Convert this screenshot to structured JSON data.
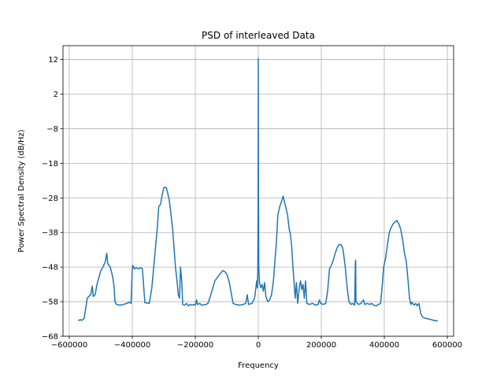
{
  "chart_data": {
    "type": "line",
    "title": "PSD of interleaved Data",
    "xlabel": "Frequency",
    "ylabel": "Power Spectral Density (dB/Hz)",
    "xlim": [
      -620000,
      620000
    ],
    "ylim": [
      -68,
      16
    ],
    "x_ticks": [
      -600000,
      -400000,
      -200000,
      0,
      200000,
      400000,
      600000
    ],
    "x_tick_labels": [
      "−600000",
      "−400000",
      "−200000",
      "0",
      "200000",
      "400000",
      "600000"
    ],
    "y_ticks": [
      12,
      2,
      -8,
      -18,
      -28,
      -38,
      -48,
      -58,
      -68
    ],
    "y_tick_labels": [
      "12",
      "2",
      "−8",
      "−18",
      "−28",
      "−38",
      "−48",
      "−58",
      "−68"
    ],
    "grid": true,
    "series": [
      {
        "color": "#1f77b4",
        "points": [
          [
            -572000,
            -63.5
          ],
          [
            -565000,
            -63.2
          ],
          [
            -560000,
            -63.4
          ],
          [
            -553000,
            -62.8
          ],
          [
            -548000,
            -60.0
          ],
          [
            -543000,
            -57.0
          ],
          [
            -538000,
            -56.5
          ],
          [
            -532000,
            -56.0
          ],
          [
            -527000,
            -53.5
          ],
          [
            -524000,
            -56.5
          ],
          [
            -518000,
            -56.0
          ],
          [
            -512000,
            -53.0
          ],
          [
            -506000,
            -51.0
          ],
          [
            -500000,
            -49.0
          ],
          [
            -493000,
            -48.0
          ],
          [
            -486000,
            -46.5
          ],
          [
            -481000,
            -44.0
          ],
          [
            -478000,
            -47.0
          ],
          [
            -470000,
            -48.0
          ],
          [
            -463000,
            -50.5
          ],
          [
            -458000,
            -53.5
          ],
          [
            -455000,
            -58.0
          ],
          [
            -450000,
            -58.8
          ],
          [
            -440000,
            -59.0
          ],
          [
            -428000,
            -58.8
          ],
          [
            -418000,
            -58.5
          ],
          [
            -410000,
            -58.2
          ],
          [
            -404000,
            -58.5
          ],
          [
            -400000,
            -48.5
          ],
          [
            -398000,
            -47.5
          ],
          [
            -394000,
            -48.5
          ],
          [
            -388000,
            -48.2
          ],
          [
            -380000,
            -48.5
          ],
          [
            -374000,
            -48.2
          ],
          [
            -368000,
            -48.5
          ],
          [
            -360000,
            -58.3
          ],
          [
            -346000,
            -58.5
          ],
          [
            -338000,
            -54.0
          ],
          [
            -332000,
            -48.0
          ],
          [
            -327000,
            -43.0
          ],
          [
            -321000,
            -37.0
          ],
          [
            -316000,
            -30.5
          ],
          [
            -310000,
            -29.8
          ],
          [
            -305000,
            -27.0
          ],
          [
            -300000,
            -25.0
          ],
          [
            -292000,
            -25.0
          ],
          [
            -288000,
            -26.5
          ],
          [
            -283000,
            -28.5
          ],
          [
            -278000,
            -32.0
          ],
          [
            -272000,
            -37.0
          ],
          [
            -267000,
            -43.0
          ],
          [
            -263000,
            -48.0
          ],
          [
            -258000,
            -52.0
          ],
          [
            -254000,
            -56.0
          ],
          [
            -250000,
            -57.0
          ],
          [
            -247000,
            -48.0
          ],
          [
            -243000,
            -52.0
          ],
          [
            -240000,
            -58.8
          ],
          [
            -234000,
            -59.0
          ],
          [
            -228000,
            -58.5
          ],
          [
            -222000,
            -59.2
          ],
          [
            -216000,
            -58.8
          ],
          [
            -210000,
            -59.0
          ],
          [
            -204000,
            -58.8
          ],
          [
            -200000,
            -59.0
          ],
          [
            -196000,
            -57.5
          ],
          [
            -193000,
            -58.8
          ],
          [
            -186000,
            -58.5
          ],
          [
            -180000,
            -59.0
          ],
          [
            -166000,
            -58.8
          ],
          [
            -160000,
            -58.5
          ],
          [
            -154000,
            -57.0
          ],
          [
            -146000,
            -54.5
          ],
          [
            -138000,
            -52.0
          ],
          [
            -130000,
            -51.0
          ],
          [
            -122000,
            -50.0
          ],
          [
            -112000,
            -49.0
          ],
          [
            -104000,
            -49.5
          ],
          [
            -98000,
            -50.5
          ],
          [
            -92000,
            -52.5
          ],
          [
            -86000,
            -55.5
          ],
          [
            -80000,
            -58.5
          ],
          [
            -72000,
            -58.8
          ],
          [
            -60000,
            -59.0
          ],
          [
            -48000,
            -58.8
          ],
          [
            -40000,
            -58.5
          ],
          [
            -35000,
            -56.0
          ],
          [
            -31000,
            -58.8
          ],
          [
            -20000,
            -58.5
          ],
          [
            -12000,
            -57.0
          ],
          [
            -9000,
            -55.0
          ],
          [
            -5000,
            -52.0
          ],
          [
            -3000,
            -54.0
          ],
          [
            -1500,
            -48.0
          ],
          [
            -600,
            -30.0
          ],
          [
            0,
            12.3
          ],
          [
            600,
            -30.0
          ],
          [
            1500,
            -48.0
          ],
          [
            4000,
            -52.5
          ],
          [
            8000,
            -54.0
          ],
          [
            12000,
            -53.0
          ],
          [
            16000,
            -55.0
          ],
          [
            20000,
            -52.5
          ],
          [
            24000,
            -56.5
          ],
          [
            30000,
            -58.0
          ],
          [
            36000,
            -57.5
          ],
          [
            42000,
            -56.0
          ],
          [
            48000,
            -52.0
          ],
          [
            53000,
            -46.0
          ],
          [
            58000,
            -40.0
          ],
          [
            62000,
            -33.0
          ],
          [
            68000,
            -30.5
          ],
          [
            74000,
            -29.0
          ],
          [
            79000,
            -27.5
          ],
          [
            84000,
            -29.5
          ],
          [
            88000,
            -31.0
          ],
          [
            93000,
            -33.0
          ],
          [
            98000,
            -37.0
          ],
          [
            102000,
            -38.5
          ],
          [
            106000,
            -42.0
          ],
          [
            110000,
            -48.0
          ],
          [
            114000,
            -53.0
          ],
          [
            117000,
            -57.0
          ],
          [
            121000,
            -52.5
          ],
          [
            125000,
            -58.5
          ],
          [
            130000,
            -54.0
          ],
          [
            134000,
            -52.0
          ],
          [
            138000,
            -54.5
          ],
          [
            142000,
            -53.0
          ],
          [
            146000,
            -57.0
          ],
          [
            150000,
            -52.0
          ],
          [
            154000,
            -58.5
          ],
          [
            162000,
            -58.8
          ],
          [
            172000,
            -58.5
          ],
          [
            182000,
            -59.0
          ],
          [
            190000,
            -58.8
          ],
          [
            194000,
            -57.5
          ],
          [
            198000,
            -58.5
          ],
          [
            206000,
            -58.8
          ],
          [
            214000,
            -58.5
          ],
          [
            220000,
            -55.0
          ],
          [
            226000,
            -48.5
          ],
          [
            232000,
            -47.5
          ],
          [
            238000,
            -46.0
          ],
          [
            244000,
            -44.0
          ],
          [
            250000,
            -42.5
          ],
          [
            256000,
            -41.5
          ],
          [
            262000,
            -41.5
          ],
          [
            268000,
            -42.5
          ],
          [
            272000,
            -45.0
          ],
          [
            276000,
            -48.0
          ],
          [
            280000,
            -52.0
          ],
          [
            284000,
            -55.5
          ],
          [
            288000,
            -58.0
          ],
          [
            294000,
            -58.8
          ],
          [
            300000,
            -58.5
          ],
          [
            306000,
            -59.0
          ],
          [
            308000,
            -47.0
          ],
          [
            309000,
            -46.0
          ],
          [
            310000,
            -58.0
          ],
          [
            318000,
            -58.8
          ],
          [
            326000,
            -58.5
          ],
          [
            334000,
            -57.5
          ],
          [
            338000,
            -58.8
          ],
          [
            346000,
            -58.5
          ],
          [
            354000,
            -58.8
          ],
          [
            360000,
            -58.5
          ],
          [
            366000,
            -59.0
          ],
          [
            374000,
            -59.2
          ],
          [
            382000,
            -58.8
          ],
          [
            388000,
            -58.5
          ],
          [
            392000,
            -55.0
          ],
          [
            398000,
            -48.0
          ],
          [
            404000,
            -45.5
          ],
          [
            410000,
            -41.5
          ],
          [
            416000,
            -38.0
          ],
          [
            422000,
            -36.5
          ],
          [
            428000,
            -35.5
          ],
          [
            434000,
            -35.0
          ],
          [
            440000,
            -34.5
          ],
          [
            446000,
            -35.5
          ],
          [
            452000,
            -37.0
          ],
          [
            458000,
            -40.0
          ],
          [
            464000,
            -44.0
          ],
          [
            470000,
            -46.5
          ],
          [
            476000,
            -52.5
          ],
          [
            480000,
            -57.0
          ],
          [
            484000,
            -58.8
          ],
          [
            488000,
            -58.2
          ],
          [
            494000,
            -59.0
          ],
          [
            500000,
            -58.5
          ],
          [
            504000,
            -59.2
          ],
          [
            510000,
            -58.5
          ],
          [
            516000,
            -61.5
          ],
          [
            522000,
            -62.5
          ],
          [
            530000,
            -62.8
          ],
          [
            540000,
            -63.0
          ],
          [
            550000,
            -63.2
          ],
          [
            560000,
            -63.5
          ],
          [
            570000,
            -63.5
          ]
        ]
      }
    ]
  }
}
